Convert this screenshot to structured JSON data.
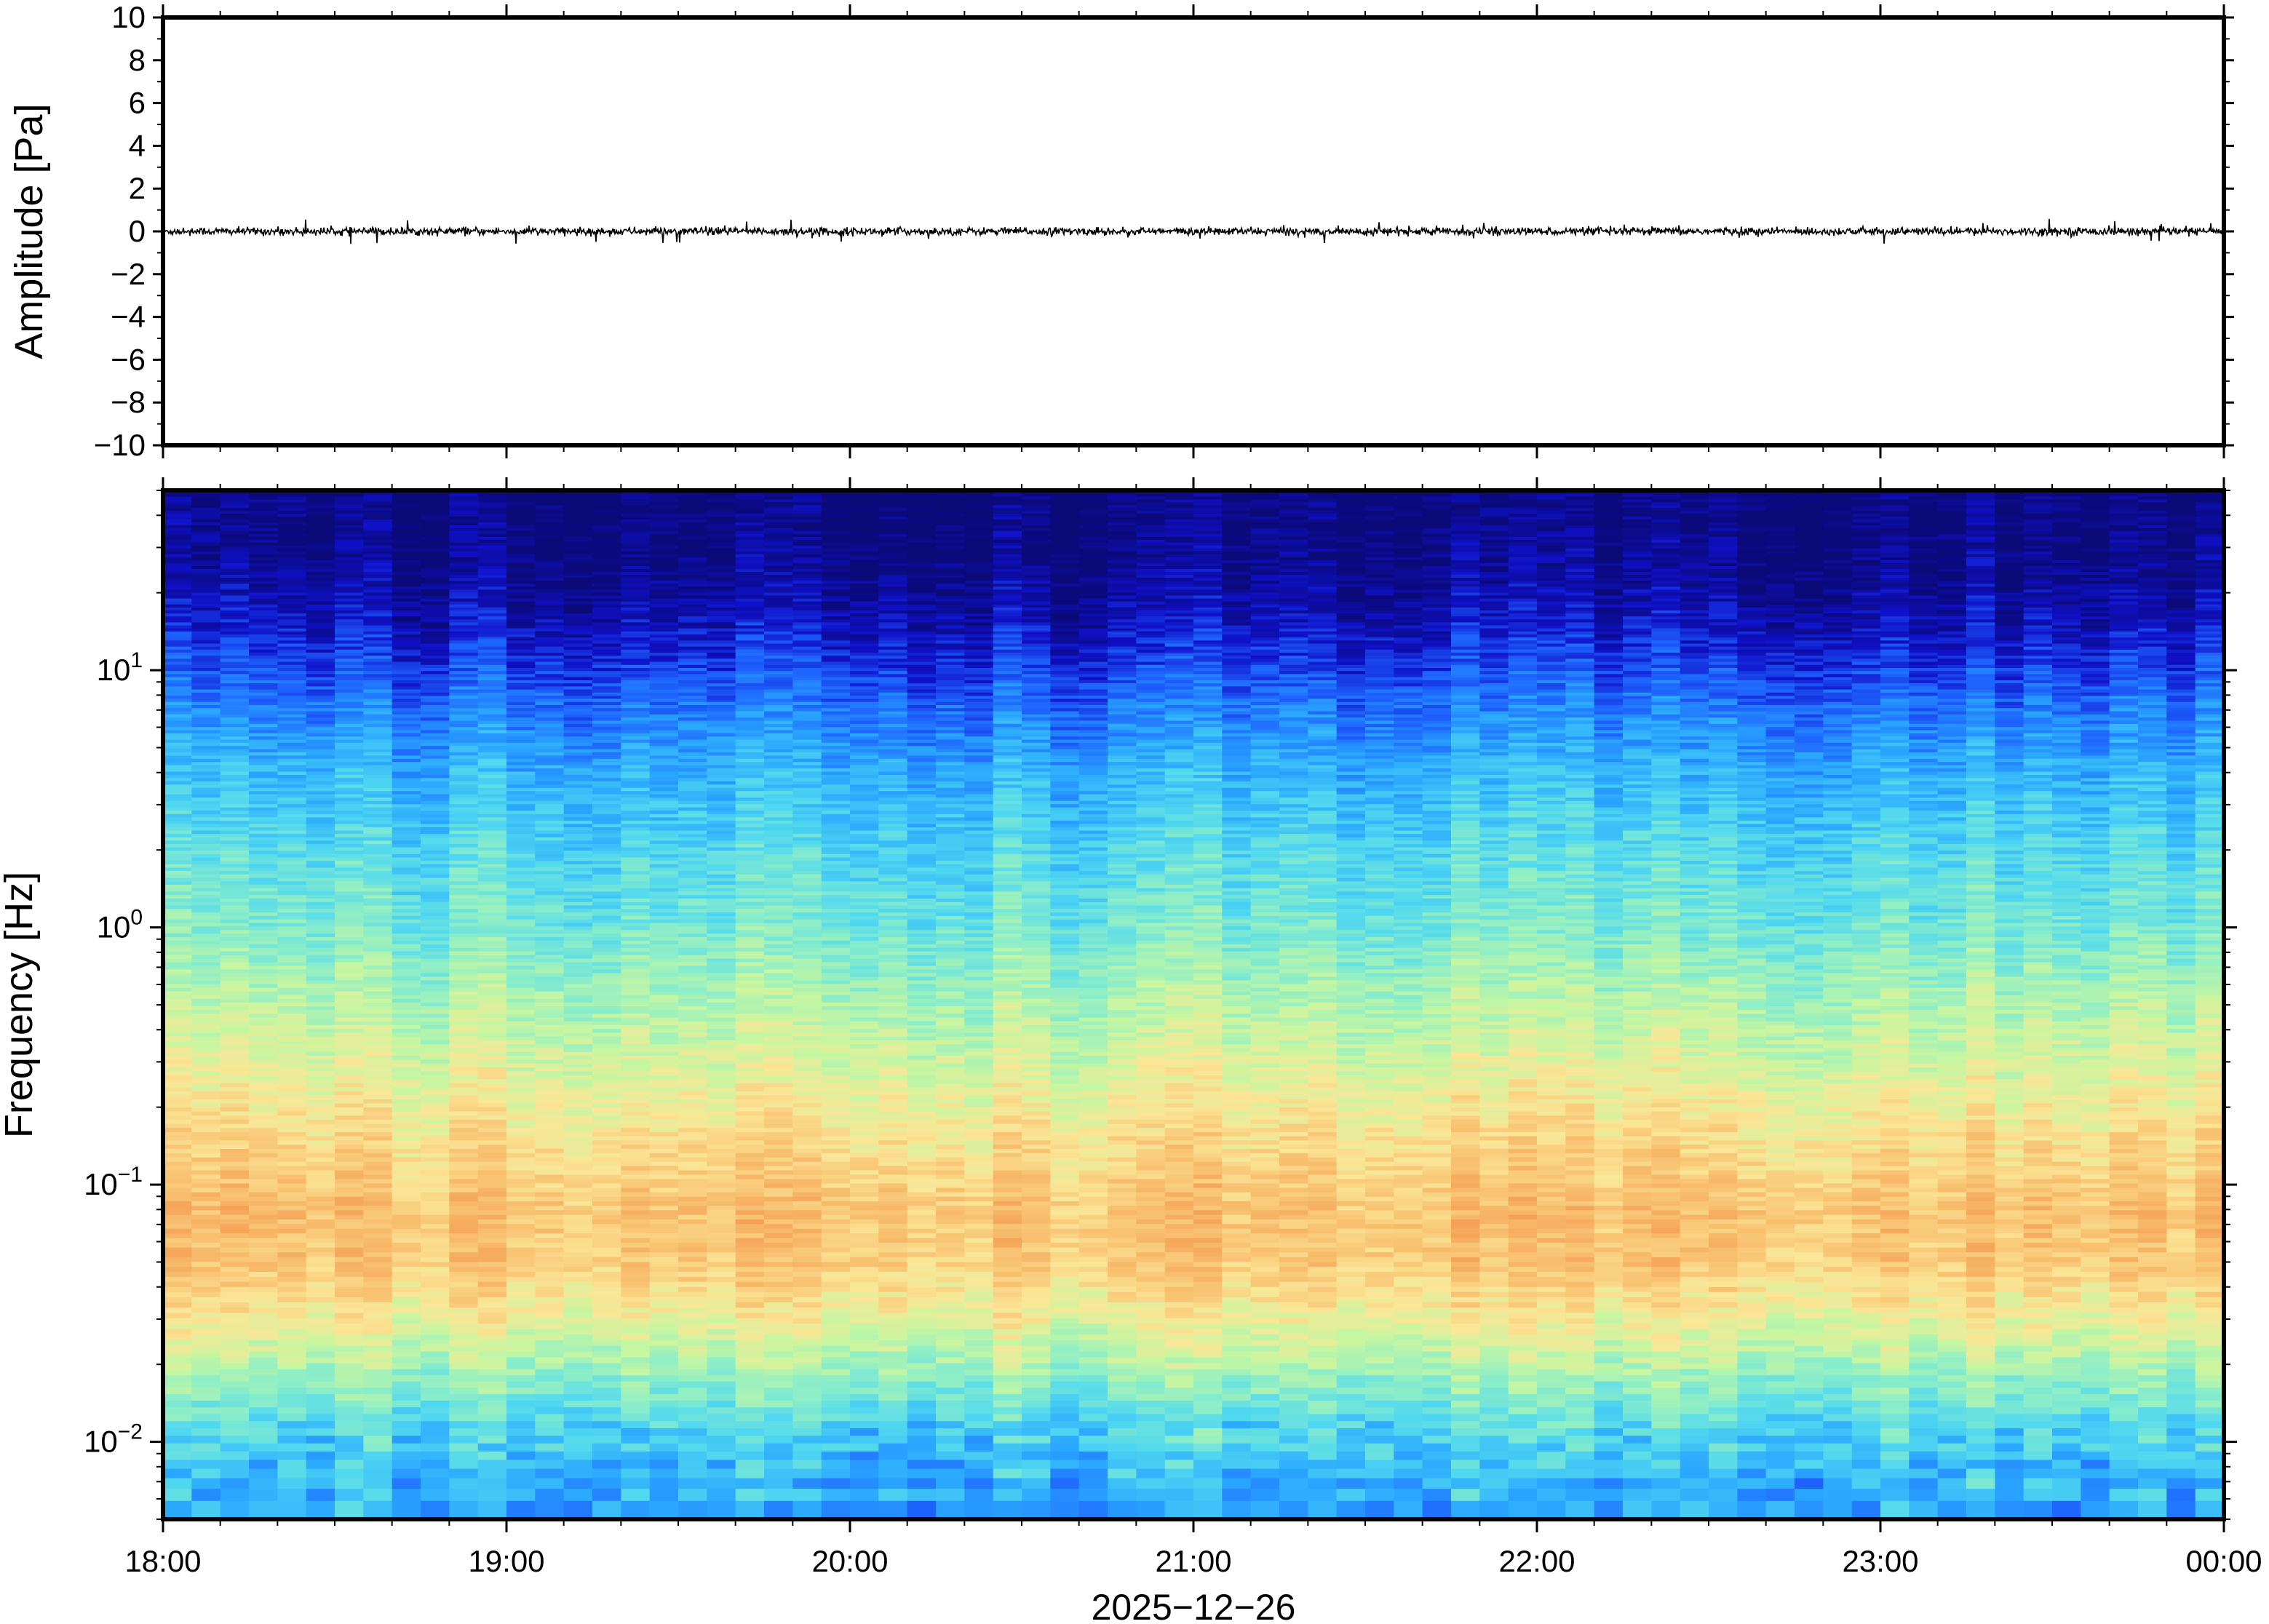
{
  "chart_data": [
    {
      "type": "line",
      "panel": "waveform",
      "ylabel": "Amplitude [Pa]",
      "xlim": [
        "18:00",
        "00:00"
      ],
      "ylim": [
        -10,
        10
      ],
      "yticks": [
        "10",
        "8",
        "6",
        "4",
        "2",
        "0",
        "−2",
        "−4",
        "−6",
        "−8",
        "−10"
      ],
      "ytick_values": [
        10,
        8,
        6,
        4,
        2,
        0,
        -2,
        -4,
        -6,
        -8,
        -10
      ],
      "signal": {
        "mean": 0.0,
        "typical_amplitude": 0.15,
        "peak_amplitude": 0.6
      },
      "line_color": "#000000",
      "grid": false
    },
    {
      "type": "heatmap",
      "panel": "spectrogram",
      "ylabel": "Frequency [Hz]",
      "yscale": "log",
      "ylim": [
        0.005,
        50
      ],
      "yticks": [
        {
          "base": "10",
          "exp": "1",
          "value": 10
        },
        {
          "base": "10",
          "exp": "0",
          "value": 1
        },
        {
          "base": "10",
          "exp": "−1",
          "value": 0.1
        },
        {
          "base": "10",
          "exp": "−2",
          "value": 0.01
        }
      ],
      "xticks": [
        "18:00",
        "19:00",
        "20:00",
        "21:00",
        "22:00",
        "23:00",
        "00:00"
      ],
      "xlabel": "2025−12−26",
      "colormap": "jet",
      "colormap_stops": [
        "#0a0a78",
        "#1010c8",
        "#1e64ff",
        "#2aa8ff",
        "#50d8f0",
        "#8ceec8",
        "#c8f6a0",
        "#fae696",
        "#f8c070",
        "#f49a50"
      ],
      "description_bands": [
        {
          "freq_range_hz": [
            15,
            50
          ],
          "level": "lowest"
        },
        {
          "freq_range_hz": [
            5,
            15
          ],
          "level": "low"
        },
        {
          "freq_range_hz": [
            0.5,
            5
          ],
          "level": "medium"
        },
        {
          "freq_range_hz": [
            0.04,
            0.2
          ],
          "level": "highest"
        },
        {
          "freq_range_hz": [
            0.005,
            0.015
          ],
          "level": "medium-low"
        }
      ],
      "grid": false
    }
  ]
}
